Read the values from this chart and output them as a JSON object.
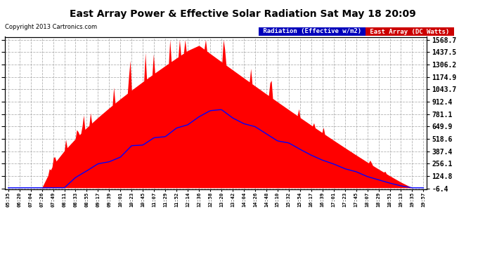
{
  "title": "East Array Power & Effective Solar Radiation Sat May 18 20:09",
  "copyright": "Copyright 2013 Cartronics.com",
  "legend_radiation": "Radiation (Effective w/m2)",
  "legend_array": "East Array (DC Watts)",
  "plot_bg_color": "#ffffff",
  "fig_bg_color": "#ffffff",
  "grid_color": "#aaaaaa",
  "yticks": [
    -6.4,
    124.8,
    256.1,
    387.4,
    518.6,
    649.9,
    781.1,
    912.4,
    1043.7,
    1174.9,
    1306.2,
    1437.5,
    1568.7
  ],
  "ymin": -6.4,
  "ymax": 1568.7,
  "xtick_labels": [
    "05:35",
    "06:20",
    "07:04",
    "07:26",
    "07:49",
    "08:11",
    "08:33",
    "08:55",
    "09:17",
    "09:39",
    "10:01",
    "10:23",
    "10:45",
    "11:07",
    "11:29",
    "11:52",
    "12:14",
    "12:36",
    "12:58",
    "13:20",
    "13:42",
    "14:04",
    "14:26",
    "14:48",
    "15:10",
    "15:32",
    "15:54",
    "16:17",
    "16:39",
    "17:01",
    "17:23",
    "17:45",
    "18:07",
    "18:29",
    "18:51",
    "19:13",
    "19:35",
    "19:57"
  ],
  "red_fill_color": "#ff0000",
  "blue_line_color": "#0000ff",
  "radiation_legend_bg": "#0000cc",
  "array_legend_bg": "#cc0000"
}
